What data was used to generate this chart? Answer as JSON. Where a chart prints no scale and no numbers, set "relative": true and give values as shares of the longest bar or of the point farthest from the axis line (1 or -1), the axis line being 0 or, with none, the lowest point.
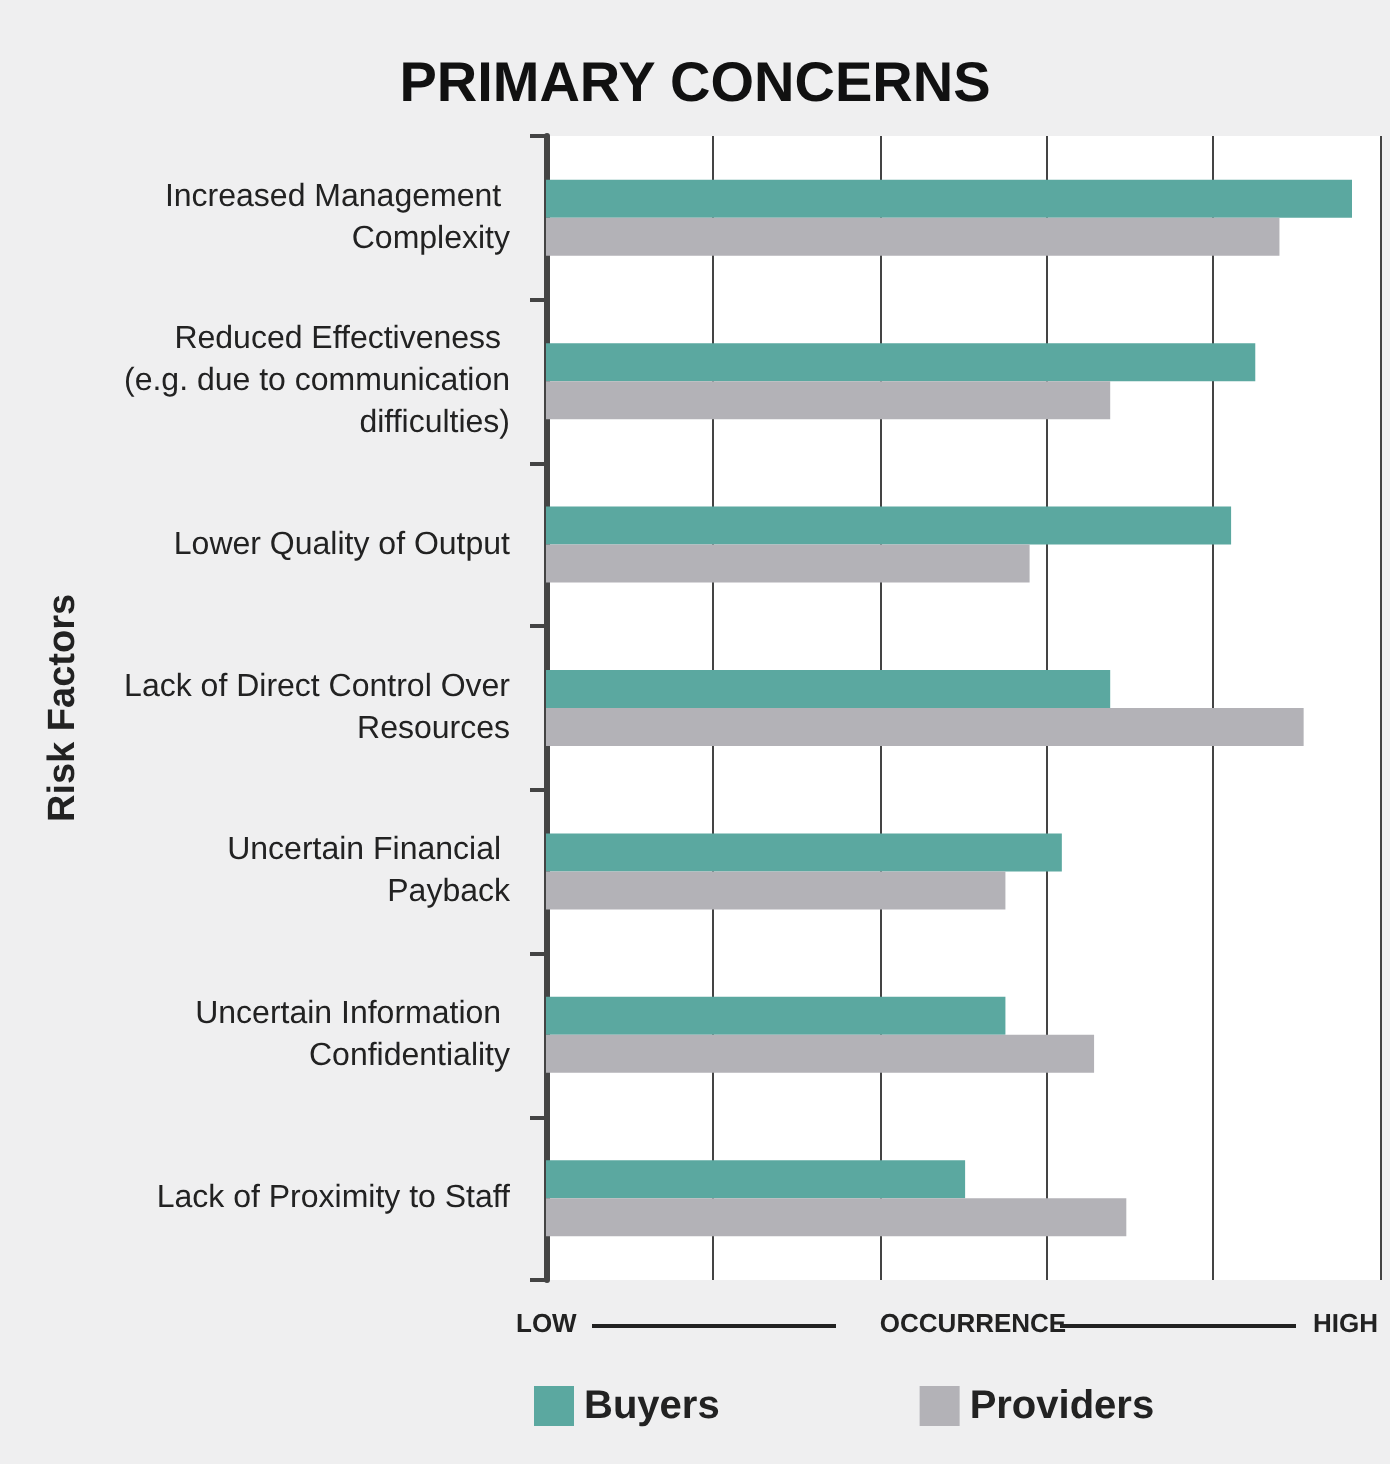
{
  "chart_data": {
    "type": "bar",
    "orientation": "horizontal",
    "relative": true,
    "title": "PRIMARY CONCERNS",
    "xlabel": "OCCURRENCE",
    "ylabel": "Risk Factors",
    "annotations": [
      "LOW",
      "HIGH"
    ],
    "categories": [
      "Increased Management Complexity",
      "Reduced Effectiveness (e.g. due to communication difficulties)",
      "Lower Quality of Output",
      "Lack of Direct Control Over Resources",
      "Uncertain Financial Payback",
      "Uncertain Information Confidentiality",
      "Lack of Proximity to Staff"
    ],
    "series": [
      {
        "name": "Buyers",
        "color": "#5ba8a0",
        "values": [
          1.0,
          0.88,
          0.85,
          0.7,
          0.64,
          0.57,
          0.52
        ]
      },
      {
        "name": "Providers",
        "color": "#b3b2b7",
        "values": [
          0.91,
          0.7,
          0.6,
          0.94,
          0.57,
          0.68,
          0.72
        ]
      }
    ],
    "grid": "x",
    "legend": "bottom left"
  }
}
